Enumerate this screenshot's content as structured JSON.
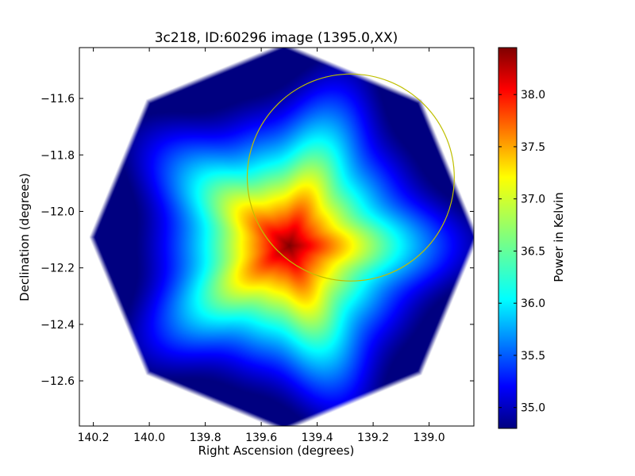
{
  "chart_data": {
    "type": "heatmap",
    "title": "3c218, ID:60296 image (1395.0,XX)",
    "xlabel": "Right Ascension (degrees)",
    "ylabel": "Declination (degrees)",
    "xlim": [
      140.25,
      138.84
    ],
    "ylim": [
      -12.76,
      -11.42
    ],
    "x_ticks": [
      {
        "value": 140.2,
        "label": "140.2"
      },
      {
        "value": 140.0,
        "label": "140.0"
      },
      {
        "value": 139.8,
        "label": "139.8"
      },
      {
        "value": 139.6,
        "label": "139.6"
      },
      {
        "value": 139.4,
        "label": "139.4"
      },
      {
        "value": 139.2,
        "label": "139.2"
      },
      {
        "value": 139.0,
        "label": "139.0"
      }
    ],
    "y_ticks": [
      {
        "value": -11.6,
        "label": "−11.6"
      },
      {
        "value": -11.8,
        "label": "−11.8"
      },
      {
        "value": -12.0,
        "label": "−12.0"
      },
      {
        "value": -12.2,
        "label": "−12.2"
      },
      {
        "value": -12.4,
        "label": "−12.4"
      },
      {
        "value": -12.6,
        "label": "−12.6"
      }
    ],
    "colorbar": {
      "label": "Power in Kelvin",
      "range": [
        34.8,
        38.45
      ],
      "colormap": "jet",
      "ticks": [
        {
          "value": 35.0,
          "label": "35.0"
        },
        {
          "value": 35.5,
          "label": "35.5"
        },
        {
          "value": 36.0,
          "label": "36.0"
        },
        {
          "value": 36.5,
          "label": "36.5"
        },
        {
          "value": 37.0,
          "label": "37.0"
        },
        {
          "value": 37.5,
          "label": "37.5"
        },
        {
          "value": 38.0,
          "label": "38.0"
        }
      ]
    },
    "field": {
      "shape": "octagon",
      "center": {
        "ra": 139.52,
        "dec": -12.09
      },
      "vertex_radius_deg": 0.69,
      "edge_value": 34.8,
      "peak": {
        "ra": 139.5,
        "dec": -12.12,
        "value": 38.45
      },
      "star_points": 5
    },
    "circle": {
      "center": {
        "ra": 139.28,
        "dec": -11.88
      },
      "radius_deg": 0.37,
      "color": "#bfbf00"
    }
  }
}
